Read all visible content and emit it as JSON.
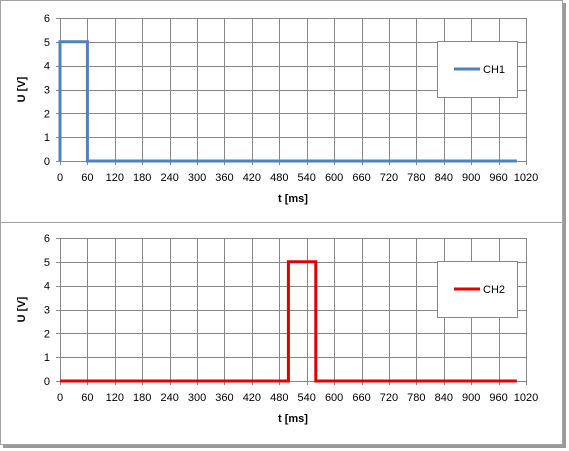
{
  "chart_data": [
    {
      "type": "line",
      "title": "",
      "xlabel": "t [ms]",
      "ylabel": "U [V]",
      "xlim": [
        0,
        1020
      ],
      "ylim": [
        0,
        6
      ],
      "xticks": [
        0,
        60,
        120,
        180,
        240,
        300,
        360,
        420,
        480,
        540,
        600,
        660,
        720,
        780,
        840,
        900,
        960,
        1020
      ],
      "yticks": [
        0,
        1,
        2,
        3,
        4,
        5,
        6
      ],
      "grid": true,
      "legend_position": "right",
      "series": [
        {
          "name": "CH1",
          "color": "#4f81bd",
          "x": [
            0,
            0,
            60,
            60,
            1000
          ],
          "y": [
            0,
            5,
            5,
            0,
            0
          ]
        }
      ]
    },
    {
      "type": "line",
      "title": "",
      "xlabel": "t [ms]",
      "ylabel": "U [V]",
      "xlim": [
        0,
        1020
      ],
      "ylim": [
        0,
        6
      ],
      "xticks": [
        0,
        60,
        120,
        180,
        240,
        300,
        360,
        420,
        480,
        540,
        600,
        660,
        720,
        780,
        840,
        900,
        960,
        1020
      ],
      "yticks": [
        0,
        1,
        2,
        3,
        4,
        5,
        6
      ],
      "grid": true,
      "legend_position": "right",
      "series": [
        {
          "name": "CH2",
          "color": "#e00000",
          "x": [
            0,
            500,
            500,
            560,
            560,
            1000
          ],
          "y": [
            0,
            0,
            5,
            5,
            0,
            0
          ]
        }
      ]
    }
  ]
}
